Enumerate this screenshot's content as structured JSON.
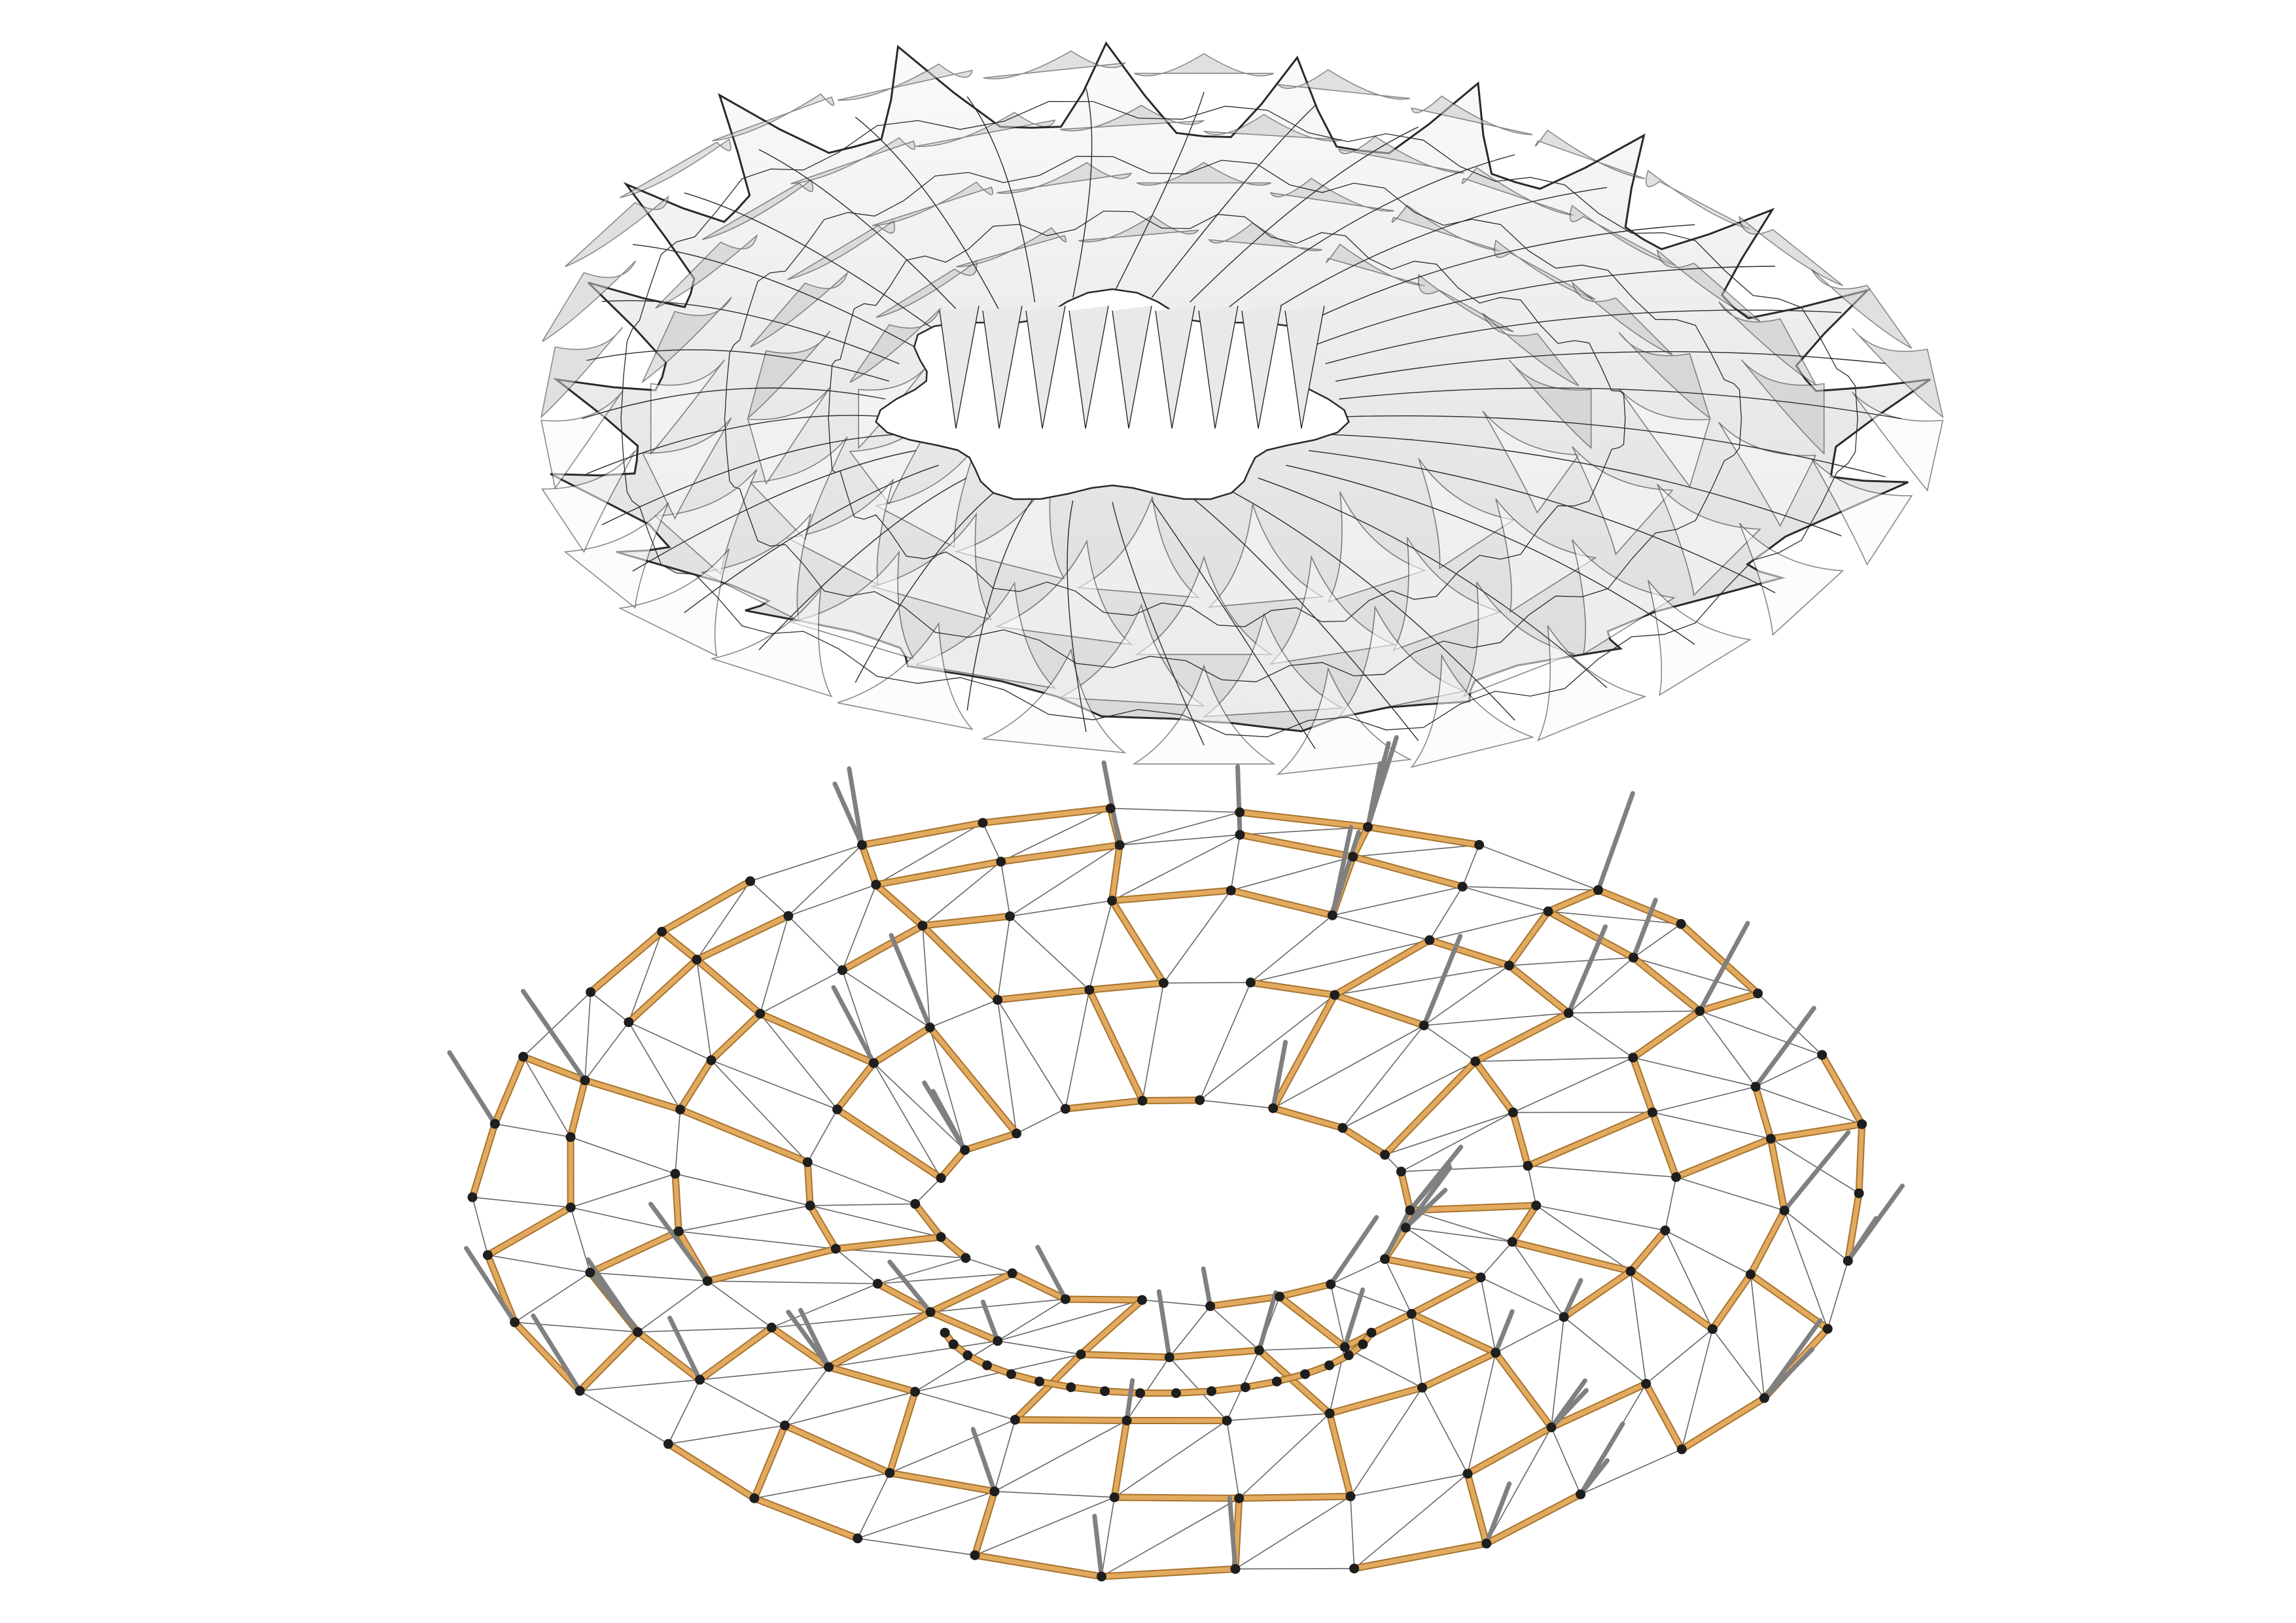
{
  "figure": {
    "panels": [
      {
        "id": "membrane",
        "description_visible": false
      },
      {
        "id": "rod-network",
        "description_visible": false
      }
    ]
  },
  "colors": {
    "background": "#ffffff",
    "membrane_fill": "#eeeeee",
    "membrane_shade": "#c8c8c8",
    "membrane_highlight": "#fafafa",
    "seam_line": "#2a2a2a",
    "rod": "#e2aa5e",
    "rod_edge": "#a8732e",
    "rod_highlight": "#f6d9ae",
    "joint": "#1e1e1e",
    "mesh_line": "#666666",
    "anchor": "#808080"
  }
}
